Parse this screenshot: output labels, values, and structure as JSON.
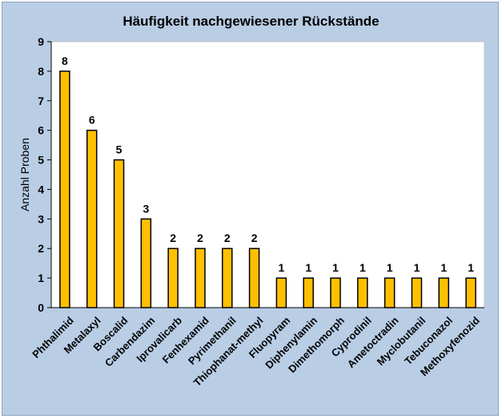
{
  "chart_data": {
    "type": "bar",
    "title": "Häufigkeit nachgewiesener Rückstände",
    "xlabel": "",
    "ylabel": "Anzahl Proben",
    "ylim": [
      0,
      9
    ],
    "yticks": [
      "0",
      "1",
      "2",
      "3",
      "4",
      "5",
      "6",
      "7",
      "8",
      "9"
    ],
    "categories": [
      "Phthalimid",
      "Metalaxyl",
      "Boscalid",
      "Carbendazim",
      "Iprovalicarb",
      "Fenhexamid",
      "Pyrimethanil",
      "Thiophanat-methyl",
      "Fluopyram",
      "Diphenylamin",
      "Dimethomorph",
      "Cyprodinil",
      "Ametoctradin",
      "Myclobutanil",
      "Tebuconazol",
      "Methoxyfenozid"
    ],
    "values": [
      8,
      6,
      5,
      3,
      2,
      2,
      2,
      2,
      1,
      1,
      1,
      1,
      1,
      1,
      1,
      1
    ],
    "data_labels": [
      "8",
      "6",
      "5",
      "3",
      "2",
      "2",
      "2",
      "2",
      "1",
      "1",
      "1",
      "1",
      "1",
      "1",
      "1",
      "1"
    ],
    "grid": false,
    "legend": "none",
    "colors": {
      "bar_fill": "#ffc000",
      "bar_stroke": "#000000",
      "plot_background": "#ffffff",
      "chart_background": "#b9cde5"
    }
  }
}
